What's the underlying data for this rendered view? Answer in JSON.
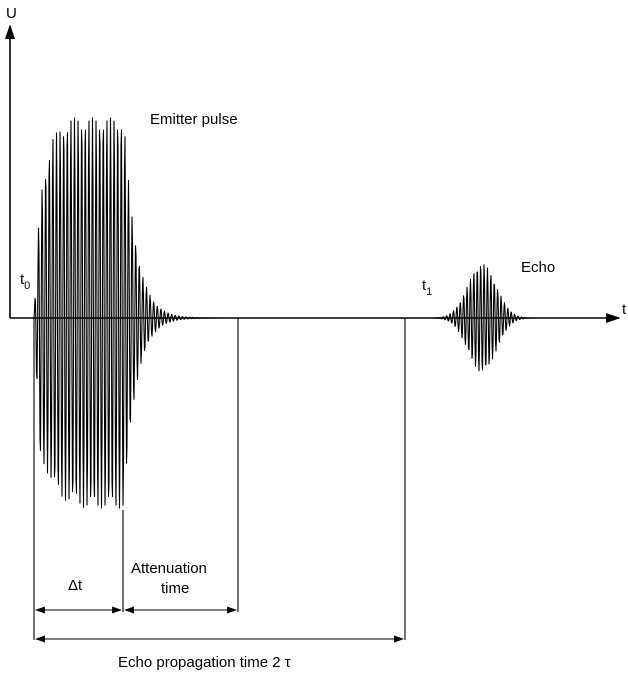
{
  "figure": {
    "axis_y_label": "U",
    "axis_x_label": "t",
    "t0_main": "t",
    "t0_sub": "0",
    "t1_main": "t",
    "t1_sub": "1",
    "emitter_label": "Emitter pulse",
    "echo_label": "Echo",
    "delta_t_label": "Δt",
    "attenuation_label_line1": "Attenuation",
    "attenuation_label_line2": "time",
    "propagation_label": "Echo propagation time 2 τ"
  }
}
